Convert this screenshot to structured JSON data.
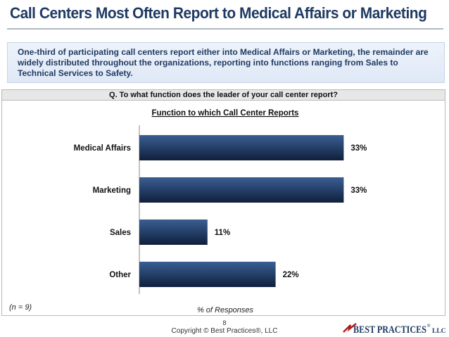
{
  "slide": {
    "title": "Call Centers Most Often Report to Medical Affairs or Marketing",
    "summary": "One-third of participating call centers report either into Medical Affairs or Marketing, the remainder are widely distributed throughout the organizations, reporting into functions ranging from Sales to Technical Services to Safety.",
    "question": "Q. To what function does the leader of your call center report?",
    "sample_size": "(n = 9)",
    "page_number": "8",
    "copyright": "Copyright © Best Practices®, LLC",
    "logo_text": "BEST PRACTICES",
    "logo_suffix": "LLC",
    "logo_mark": "®"
  },
  "colors": {
    "title": "#1f3a63",
    "bar_top": "#3a5f93",
    "bar_bottom": "#0f1f3c",
    "logo": "#1f3a63",
    "logo_accent": "#b31b1b"
  },
  "chart_data": {
    "type": "bar",
    "orientation": "horizontal",
    "title": "Function to which Call Center Reports",
    "xlabel": "% of Responses",
    "ylabel": "",
    "categories": [
      "Medical Affairs",
      "Marketing",
      "Sales",
      "Other"
    ],
    "values": [
      33,
      33,
      11,
      22
    ],
    "value_labels": [
      "33%",
      "33%",
      "11%",
      "22%"
    ],
    "xlim": [
      0,
      100
    ],
    "grid": false,
    "legend": "none"
  }
}
